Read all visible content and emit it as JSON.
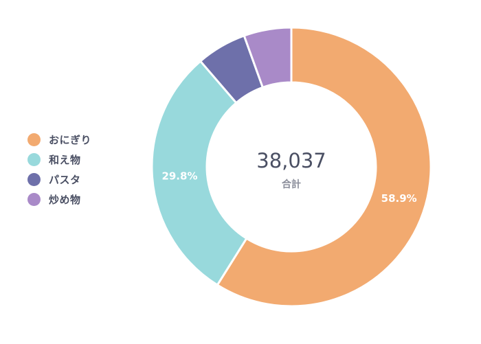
{
  "chart_data": {
    "type": "donut",
    "categories": [
      "おにぎり",
      "和え物",
      "パスタ",
      "炒め物"
    ],
    "values": [
      58.9,
      29.8,
      5.8,
      5.5
    ],
    "unit": "%",
    "colors": [
      "#f2aa70",
      "#98d9dc",
      "#6e70aa",
      "#a98ac8"
    ],
    "data_labels": [
      "58.9%",
      "29.8%",
      "",
      ""
    ],
    "center_value": "38,037",
    "center_label": "合計",
    "legend_position": "left"
  }
}
